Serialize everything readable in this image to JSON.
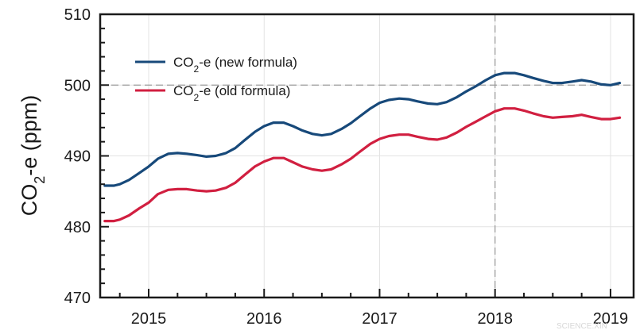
{
  "chart_data": {
    "type": "line",
    "ylabel_main": "CO",
    "ylabel_sub": "2",
    "ylabel_rest": "-e (ppm)",
    "xlim": [
      2014.58,
      2019.2
    ],
    "ylim": [
      470,
      510
    ],
    "x_ticks": [
      2015,
      2016,
      2017,
      2018,
      2019
    ],
    "x_tick_labels": [
      "2015",
      "2016",
      "2017",
      "2018",
      "2019"
    ],
    "y_ticks": [
      470,
      480,
      490,
      500,
      510
    ],
    "y_tick_labels": [
      "470",
      "480",
      "490",
      "500",
      "510"
    ],
    "grid": true,
    "legend_position": "top-left",
    "reference_lines": {
      "x": 2018,
      "y": 500
    },
    "series": [
      {
        "name_main": "CO",
        "name_sub": "2",
        "name_rest": "-e (new formula)",
        "color": "#17497a",
        "x": [
          2014.62,
          2014.7,
          2014.75,
          2014.83,
          2014.92,
          2015.0,
          2015.08,
          2015.17,
          2015.25,
          2015.33,
          2015.42,
          2015.5,
          2015.58,
          2015.67,
          2015.75,
          2015.83,
          2015.92,
          2016.0,
          2016.08,
          2016.17,
          2016.25,
          2016.33,
          2016.42,
          2016.5,
          2016.58,
          2016.67,
          2016.75,
          2016.83,
          2016.92,
          2017.0,
          2017.08,
          2017.17,
          2017.25,
          2017.33,
          2017.42,
          2017.5,
          2017.58,
          2017.67,
          2017.75,
          2017.83,
          2017.92,
          2018.0,
          2018.08,
          2018.17,
          2018.25,
          2018.33,
          2018.42,
          2018.5,
          2018.58,
          2018.67,
          2018.75,
          2018.83,
          2018.92,
          2019.0,
          2019.08
        ],
        "y": [
          485.8,
          485.8,
          486.0,
          486.6,
          487.6,
          488.5,
          489.6,
          490.3,
          490.4,
          490.3,
          490.1,
          489.9,
          490.0,
          490.4,
          491.1,
          492.2,
          493.4,
          494.2,
          494.7,
          494.7,
          494.2,
          493.6,
          493.1,
          492.9,
          493.1,
          493.8,
          494.6,
          495.6,
          496.7,
          497.5,
          497.9,
          498.1,
          498.0,
          497.7,
          497.4,
          497.3,
          497.6,
          498.3,
          499.1,
          499.8,
          500.7,
          501.4,
          501.7,
          501.7,
          501.4,
          501.0,
          500.6,
          500.3,
          500.3,
          500.5,
          500.7,
          500.5,
          500.1,
          500.0,
          500.3
        ]
      },
      {
        "name_main": "CO",
        "name_sub": "2",
        "name_rest": "-e (old formula)",
        "color": "#d11f40",
        "x": [
          2014.62,
          2014.7,
          2014.75,
          2014.83,
          2014.92,
          2015.0,
          2015.08,
          2015.17,
          2015.25,
          2015.33,
          2015.42,
          2015.5,
          2015.58,
          2015.67,
          2015.75,
          2015.83,
          2015.92,
          2016.0,
          2016.08,
          2016.17,
          2016.25,
          2016.33,
          2016.42,
          2016.5,
          2016.58,
          2016.67,
          2016.75,
          2016.83,
          2016.92,
          2017.0,
          2017.08,
          2017.17,
          2017.25,
          2017.33,
          2017.42,
          2017.5,
          2017.58,
          2017.67,
          2017.75,
          2017.83,
          2017.92,
          2018.0,
          2018.08,
          2018.17,
          2018.25,
          2018.33,
          2018.42,
          2018.5,
          2018.58,
          2018.67,
          2018.75,
          2018.83,
          2018.92,
          2019.0,
          2019.08
        ],
        "y": [
          480.8,
          480.8,
          481.0,
          481.6,
          482.6,
          483.4,
          484.6,
          485.2,
          485.3,
          485.3,
          485.1,
          485.0,
          485.1,
          485.5,
          486.2,
          487.3,
          488.5,
          489.2,
          489.7,
          489.7,
          489.1,
          488.5,
          488.1,
          487.9,
          488.1,
          488.8,
          489.6,
          490.6,
          491.7,
          492.4,
          492.8,
          493.0,
          493.0,
          492.7,
          492.4,
          492.3,
          492.6,
          493.3,
          494.1,
          494.8,
          495.6,
          496.3,
          496.7,
          496.7,
          496.4,
          496.0,
          495.6,
          495.4,
          495.5,
          495.6,
          495.8,
          495.5,
          495.2,
          495.2,
          495.4
        ]
      }
    ]
  },
  "watermark": "SCIENCE.XIN"
}
